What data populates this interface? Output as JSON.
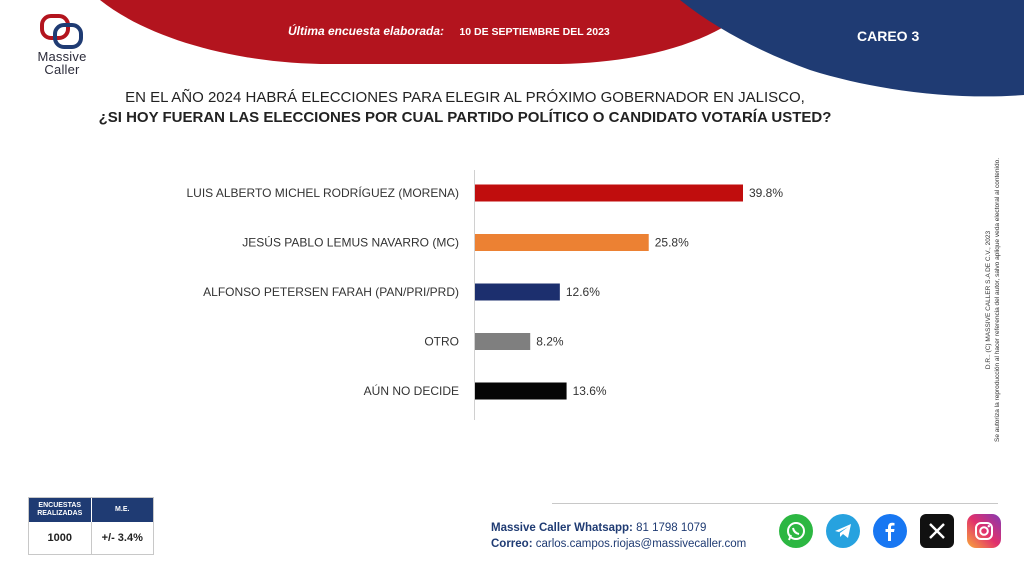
{
  "header": {
    "brand": "Massive",
    "brand_line2": "Caller",
    "survey_label": "Última encuesta elaborada:",
    "survey_date": "10 DE SEPTIEMBRE DEL 2023",
    "careo": "CAREO 3",
    "colors": {
      "red": "#b3141e",
      "navy": "#1f3b73"
    }
  },
  "question": {
    "line1": "EN EL AÑO 2024 HABRÁ ELECCIONES PARA ELEGIR AL PRÓXIMO GOBERNADOR EN JALISCO,",
    "line2": "¿SI HOY FUERAN LAS ELECCIONES POR CUAL PARTIDO POLÍTICO O CANDIDATO VOTARÍA USTED?"
  },
  "chart_data": {
    "type": "bar",
    "orientation": "horizontal",
    "categories": [
      "LUIS ALBERTO MICHEL RODRÍGUEZ (MORENA)",
      "JESÚS PABLO LEMUS NAVARRO (MC)",
      "ALFONSO PETERSEN FARAH (PAN/PRI/PRD)",
      "OTRO",
      "AÚN NO DECIDE"
    ],
    "values": [
      39.8,
      25.8,
      12.6,
      8.2,
      13.6
    ],
    "value_labels": [
      "39.8%",
      "25.8%",
      "12.6%",
      "8.2%",
      "13.6%"
    ],
    "colors": [
      "#c00d0d",
      "#ec8133",
      "#1c2f6e",
      "#7f7f7f",
      "#050505"
    ],
    "xlim": [
      0,
      40
    ],
    "grid": false,
    "legend": "none"
  },
  "side_note": {
    "line1": "D.R.. (C) MASSIVE CALLER S.A DE C.V., 2023",
    "line2": "Se autoriza la reproducción al hacer referencia del autor, salvo aplique veda electoral al contenido."
  },
  "stats": {
    "col1_header": "ENCUESTAS REALIZADAS",
    "col2_header": "M.E.",
    "col1_value": "1000",
    "col2_value": "+/- 3.4%"
  },
  "contact": {
    "whatsapp_label": "Massive Caller Whatsapp:",
    "whatsapp_number": "81 1798 1079",
    "email_label": "Correo:",
    "email": "carlos.campos.riojas@massivecaller.com"
  },
  "socials": [
    "whatsapp-icon",
    "telegram-icon",
    "facebook-icon",
    "x-icon",
    "instagram-icon"
  ]
}
